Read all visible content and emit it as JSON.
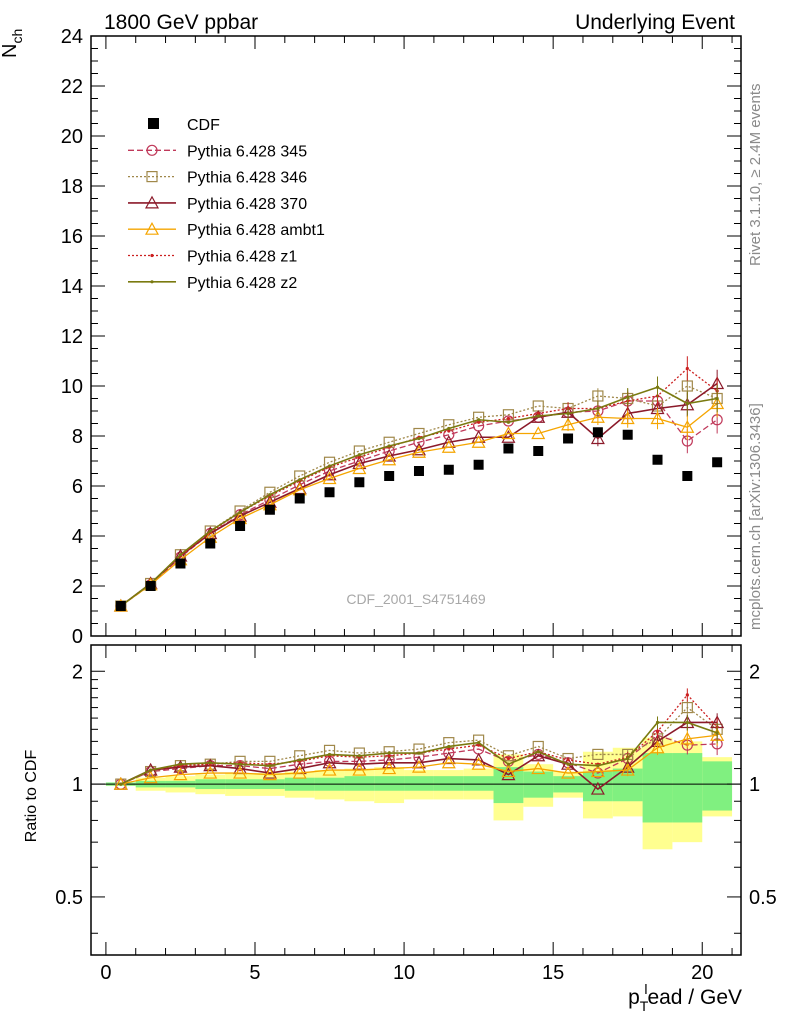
{
  "header": {
    "left": "1800 GeV ppbar",
    "right": "Underlying Event"
  },
  "side_text": {
    "top": "Rivet 3.1.10, ≥ 2.4M events",
    "bottom": "mcplots.cern.ch [arXiv:1306.3436]"
  },
  "watermark": "CDF_2001_S4751469",
  "colors": {
    "data": "#000000",
    "p345": "#c0395a",
    "p346": "#a0884a",
    "p370": "#8b1a2a",
    "ambt1": "#f5a500",
    "z1": "#cc2020",
    "z2": "#7a7a10",
    "band_inner": "#80f080",
    "band_outer": "#ffff90"
  },
  "chart_data": [
    {
      "type": "scatter",
      "ylabel_main": "N",
      "ylabel_sub": "ch",
      "ylim": [
        0,
        24
      ],
      "xlim": [
        -0.5,
        21.3
      ],
      "yticks": [
        0,
        2,
        4,
        6,
        8,
        10,
        12,
        14,
        16,
        18,
        20,
        22,
        24
      ],
      "legend_placement": "top-left",
      "x": [
        0.5,
        1.5,
        2.5,
        3.5,
        4.5,
        5.5,
        6.5,
        7.5,
        8.5,
        9.5,
        10.5,
        11.5,
        12.5,
        13.5,
        14.5,
        15.5,
        16.5,
        17.5,
        18.5,
        19.5,
        20.5
      ],
      "series": [
        {
          "name": "CDF",
          "values": [
            1.2,
            2.0,
            2.9,
            3.7,
            4.4,
            5.05,
            5.5,
            5.75,
            6.15,
            6.4,
            6.6,
            6.65,
            6.85,
            7.5,
            7.4,
            7.9,
            8.15,
            8.05,
            7.05,
            6.4,
            6.95
          ]
        },
        {
          "name": "Pythia 6.428 345",
          "values": [
            1.2,
            2.05,
            3.15,
            4.1,
            4.85,
            5.45,
            6.05,
            6.6,
            7.0,
            7.4,
            7.75,
            8.05,
            8.4,
            8.6,
            8.75,
            8.95,
            9.0,
            9.4,
            9.4,
            7.8,
            8.65
          ]
        },
        {
          "name": "Pythia 6.428 346",
          "values": [
            1.2,
            2.1,
            3.25,
            4.2,
            5.0,
            5.75,
            6.4,
            6.95,
            7.4,
            7.75,
            8.1,
            8.45,
            8.75,
            8.85,
            9.2,
            9.1,
            9.6,
            9.5,
            9.2,
            10.0,
            9.5
          ]
        },
        {
          "name": "Pythia 6.428 370",
          "values": [
            1.2,
            2.1,
            3.2,
            4.1,
            4.8,
            5.35,
            5.9,
            6.45,
            6.9,
            7.2,
            7.45,
            7.75,
            7.95,
            7.95,
            8.75,
            8.95,
            7.9,
            8.9,
            9.1,
            9.25,
            10.1
          ]
        },
        {
          "name": "Pythia 6.428 ambt1",
          "values": [
            1.2,
            2.05,
            3.05,
            3.95,
            4.7,
            5.25,
            5.85,
            6.3,
            6.7,
            7.05,
            7.35,
            7.55,
            7.75,
            8.1,
            8.1,
            8.45,
            8.75,
            8.7,
            8.7,
            8.35,
            9.3
          ]
        },
        {
          "name": "Pythia 6.428 z1",
          "values": [
            1.2,
            2.1,
            3.2,
            4.15,
            4.95,
            5.6,
            6.2,
            6.75,
            7.15,
            7.55,
            7.95,
            8.2,
            8.55,
            8.7,
            8.9,
            9.1,
            9.1,
            9.4,
            9.6,
            10.7,
            9.8
          ]
        },
        {
          "name": "Pythia 6.428 z2",
          "values": [
            1.2,
            2.1,
            3.25,
            4.2,
            4.95,
            5.65,
            6.25,
            6.8,
            7.25,
            7.6,
            7.9,
            8.3,
            8.65,
            8.55,
            8.8,
            8.9,
            9.1,
            9.55,
            9.95,
            9.3,
            9.5
          ]
        }
      ]
    },
    {
      "type": "line",
      "ylabel": "Ratio to CDF",
      "xlabel_main": "p",
      "xlabel_sub": "T",
      "xlabel_sup": "l",
      "xlabel_rest": "ead / GeV",
      "ylim": [
        0.35,
        2.35
      ],
      "xlim": [
        -0.5,
        21.3
      ],
      "yticks": [
        0.5,
        1,
        2
      ],
      "yticklabels": [
        "0.5",
        "1",
        "2"
      ],
      "xticks": [
        0,
        5,
        10,
        15,
        20
      ],
      "x": [
        0.5,
        1.5,
        2.5,
        3.5,
        4.5,
        5.5,
        6.5,
        7.5,
        8.5,
        9.5,
        10.5,
        11.5,
        12.5,
        13.5,
        14.5,
        15.5,
        16.5,
        17.5,
        18.5,
        19.5,
        20.5
      ],
      "band_inner": {
        "lo": [
          0.99,
          0.98,
          0.98,
          0.97,
          0.97,
          0.97,
          0.96,
          0.96,
          0.96,
          0.96,
          0.96,
          0.96,
          0.96,
          0.89,
          0.92,
          0.95,
          0.9,
          0.9,
          0.79,
          0.79,
          0.85
        ],
        "hi": [
          1.01,
          1.02,
          1.02,
          1.03,
          1.03,
          1.03,
          1.04,
          1.04,
          1.05,
          1.05,
          1.05,
          1.05,
          1.05,
          1.11,
          1.08,
          1.05,
          1.08,
          1.1,
          1.21,
          1.21,
          1.15
        ]
      },
      "band_outer": {
        "lo": [
          0.99,
          0.96,
          0.95,
          0.94,
          0.93,
          0.93,
          0.92,
          0.91,
          0.9,
          0.89,
          0.91,
          0.91,
          0.91,
          0.8,
          0.87,
          0.92,
          0.81,
          0.82,
          0.67,
          0.7,
          0.82
        ],
        "hi": [
          1.01,
          1.04,
          1.05,
          1.06,
          1.07,
          1.07,
          1.08,
          1.09,
          1.1,
          1.11,
          1.09,
          1.09,
          1.1,
          1.2,
          1.13,
          1.08,
          1.22,
          1.25,
          1.33,
          1.3,
          1.18
        ]
      },
      "series": [
        {
          "name": "Pythia 6.428 345",
          "values": [
            1.0,
            1.08,
            1.1,
            1.12,
            1.12,
            1.1,
            1.13,
            1.15,
            1.15,
            1.16,
            1.18,
            1.21,
            1.24,
            1.15,
            1.2,
            1.14,
            1.07,
            1.17,
            1.35,
            1.27,
            1.28
          ]
        },
        {
          "name": "Pythia 6.428 346",
          "values": [
            1.0,
            1.08,
            1.12,
            1.13,
            1.15,
            1.15,
            1.19,
            1.23,
            1.21,
            1.22,
            1.24,
            1.29,
            1.31,
            1.19,
            1.26,
            1.17,
            1.2,
            1.2,
            1.32,
            1.6,
            1.4
          ]
        },
        {
          "name": "Pythia 6.428 370",
          "values": [
            1.0,
            1.09,
            1.11,
            1.12,
            1.1,
            1.07,
            1.1,
            1.14,
            1.13,
            1.14,
            1.14,
            1.17,
            1.16,
            1.06,
            1.19,
            1.13,
            0.97,
            1.11,
            1.3,
            1.46,
            1.46
          ]
        },
        {
          "name": "Pythia 6.428 ambt1",
          "values": [
            1.0,
            1.04,
            1.06,
            1.07,
            1.07,
            1.06,
            1.07,
            1.09,
            1.09,
            1.1,
            1.11,
            1.14,
            1.13,
            1.08,
            1.1,
            1.07,
            1.08,
            1.09,
            1.25,
            1.32,
            1.35
          ]
        },
        {
          "name": "Pythia 6.428 z1",
          "values": [
            1.0,
            1.09,
            1.12,
            1.13,
            1.14,
            1.13,
            1.15,
            1.19,
            1.18,
            1.19,
            1.21,
            1.24,
            1.27,
            1.17,
            1.22,
            1.16,
            1.13,
            1.18,
            1.38,
            1.73,
            1.42
          ]
        },
        {
          "name": "Pythia 6.428 z2",
          "values": [
            1.0,
            1.09,
            1.13,
            1.14,
            1.13,
            1.12,
            1.16,
            1.2,
            1.19,
            1.21,
            1.21,
            1.26,
            1.29,
            1.13,
            1.22,
            1.13,
            1.12,
            1.17,
            1.46,
            1.46,
            1.37
          ]
        }
      ]
    }
  ]
}
